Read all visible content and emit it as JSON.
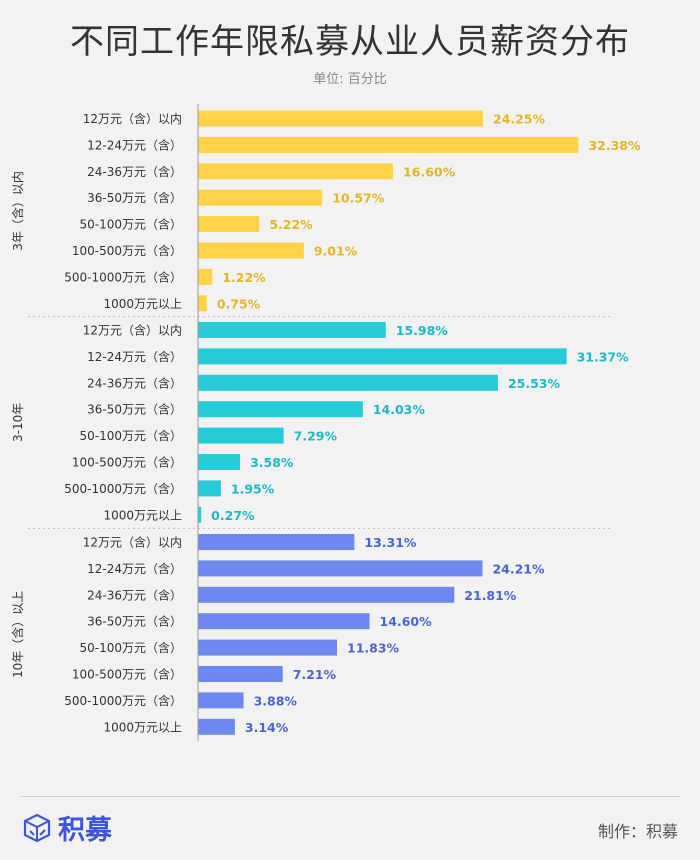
{
  "header": {
    "title": "不同工作年限私募从业人员薪资分布",
    "subtitle": "单位: 百分比"
  },
  "footer": {
    "logo_text": "积募",
    "credit": "制作：积募"
  },
  "colors": {
    "group1": "#ffd24a",
    "group2": "#27cbd8",
    "group3": "#6d89f0",
    "label1": "#e3b52b",
    "label2": "#1fb8c6",
    "label3": "#4a64d4",
    "logo": "#3f56d8"
  },
  "chart_data": {
    "type": "bar",
    "orientation": "horizontal",
    "unit": "%",
    "xlim": [
      0,
      35
    ],
    "categories": [
      "12万元（含）以内",
      "12-24万元（含）",
      "24-36万元（含）",
      "36-50万元（含）",
      "50-100万元（含）",
      "100-500万元（含）",
      "500-1000万元（含）",
      "1000万元以上"
    ],
    "series": [
      {
        "name": "3年（含）以内",
        "values": [
          24.25,
          32.38,
          16.6,
          10.57,
          5.22,
          9.01,
          1.22,
          0.75
        ]
      },
      {
        "name": "3-10年",
        "values": [
          15.98,
          31.37,
          25.53,
          14.03,
          7.29,
          3.58,
          1.95,
          0.27
        ]
      },
      {
        "name": "10年（含）以上",
        "values": [
          13.31,
          24.21,
          21.81,
          14.6,
          11.83,
          7.21,
          3.88,
          3.14
        ]
      }
    ]
  }
}
